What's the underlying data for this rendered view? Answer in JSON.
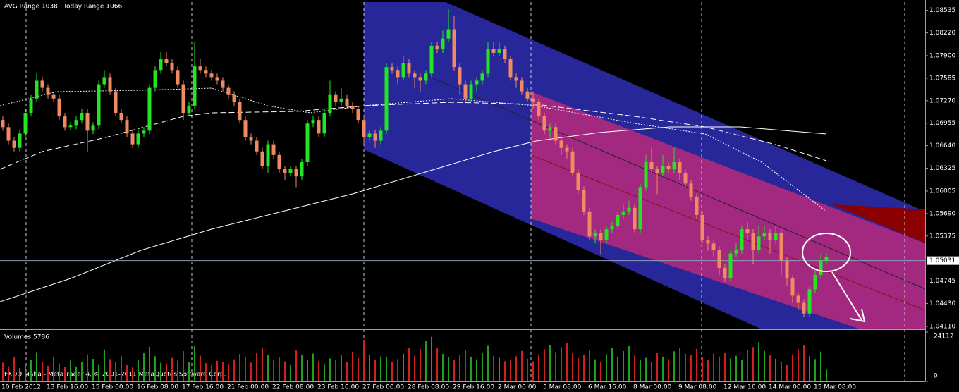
{
  "chart_data": {
    "type": "candlestick",
    "annotations": [
      "AVG Range 1038",
      "Today Range 1066"
    ],
    "footer": "FXDD Malta - MetaTrader 4, © 2001-2011 MetaQuotes Software Corp.",
    "categories": [
      "10 Feb 2012",
      null,
      null,
      null,
      null,
      null,
      null,
      null,
      "13 Feb 16:00",
      null,
      null,
      null,
      null,
      null,
      null,
      null,
      "15 Feb 00:00",
      null,
      null,
      null,
      null,
      null,
      null,
      null,
      "16 Feb 08:00",
      null,
      null,
      null,
      null,
      null,
      null,
      null,
      "17 Feb 16:00",
      null,
      null,
      null,
      null,
      null,
      null,
      null,
      "21 Feb 00:00",
      null,
      null,
      null,
      null,
      null,
      null,
      null,
      "22 Feb 08:00",
      null,
      null,
      null,
      null,
      null,
      null,
      null,
      "23 Feb 16:00",
      null,
      null,
      null,
      null,
      null,
      null,
      null,
      "27 Feb 00:00",
      null,
      null,
      null,
      null,
      null,
      null,
      null,
      "28 Feb 08:00",
      null,
      null,
      null,
      null,
      null,
      null,
      null,
      "29 Feb 16:00",
      null,
      null,
      null,
      null,
      null,
      null,
      null,
      "2 Mar 00:00",
      null,
      null,
      null,
      null,
      null,
      null,
      null,
      "5 Mar 08:00",
      null,
      null,
      null,
      null,
      null,
      null,
      null,
      "6 Mar 16:00",
      null,
      null,
      null,
      null,
      null,
      null,
      null,
      "8 Mar 00:00",
      null,
      null,
      null,
      null,
      null,
      null,
      null,
      "9 Mar 08:00",
      null,
      null,
      null,
      null,
      null,
      null,
      null,
      "12 Mar 16:00",
      null,
      null,
      null,
      null,
      null,
      null,
      null,
      "14 Mar 00:00",
      null,
      null,
      null,
      null,
      null,
      null,
      null,
      "15 Mar 08:00",
      null,
      null
    ],
    "open": [
      1.07,
      1.069,
      1.0671,
      1.0661,
      1.0681,
      1.071,
      1.073,
      1.0755,
      1.0745,
      1.0735,
      1.073,
      1.0705,
      1.069,
      1.0692,
      1.07,
      1.071,
      1.0685,
      1.0692,
      1.075,
      1.076,
      1.074,
      1.071,
      1.07,
      1.0681,
      1.0666,
      1.0681,
      1.0685,
      1.0745,
      1.077,
      1.0785,
      1.078,
      1.077,
      1.075,
      1.071,
      1.072,
      1.0775,
      1.077,
      1.0765,
      1.076,
      1.0755,
      1.0745,
      1.0735,
      1.0725,
      1.07,
      1.0676,
      1.0671,
      1.0656,
      1.0636,
      1.0666,
      1.0651,
      1.0631,
      1.0626,
      1.0631,
      1.0621,
      1.0641,
      1.0695,
      1.07,
      1.0681,
      1.071,
      1.0735,
      1.0725,
      1.073,
      1.072,
      1.0715,
      1.07,
      1.0676,
      1.0681,
      1.0671,
      1.0685,
      1.0774,
      1.077,
      1.076,
      1.078,
      1.0765,
      1.076,
      1.0755,
      1.0765,
      1.0804,
      1.0799,
      1.0814,
      1.0827,
      1.0774,
      1.075,
      1.073,
      1.075,
      1.0755,
      1.0765,
      1.0799,
      1.0794,
      1.0799,
      1.0785,
      1.076,
      1.0755,
      1.074,
      1.073,
      1.0725,
      1.0705,
      1.0685,
      1.069,
      1.0671,
      1.0661,
      1.0656,
      1.0626,
      1.0602,
      1.0572,
      1.0537,
      1.0542,
      1.0532,
      1.0547,
      1.0552,
      1.0567,
      1.0572,
      1.0577,
      1.0547,
      1.0606,
      1.0641,
      1.0631,
      1.0626,
      1.0636,
      1.0631,
      1.0641,
      1.0626,
      1.0611,
      1.0592,
      1.0567,
      1.0532,
      1.0527,
      1.0518,
      1.0493,
      1.0478,
      1.0513,
      1.0518,
      1.0547,
      1.0542,
      1.0518,
      1.0537,
      1.0542,
      1.0532,
      1.0542,
      1.0503,
      1.0478,
      1.0454,
      1.0444,
      1.0429,
      1.0463,
      1.0483,
      1.0503
    ],
    "high": [
      1.0705,
      1.0695,
      1.0676,
      1.0686,
      1.0715,
      1.0735,
      1.0765,
      1.076,
      1.075,
      1.074,
      1.0735,
      1.071,
      1.0697,
      1.0705,
      1.0715,
      1.0715,
      1.0697,
      1.0755,
      1.077,
      1.0765,
      1.0745,
      1.0715,
      1.0705,
      1.0686,
      1.0686,
      1.069,
      1.075,
      1.0775,
      1.0795,
      1.0795,
      1.0785,
      1.0775,
      1.0755,
      1.0725,
      1.081,
      1.0785,
      1.0775,
      1.077,
      1.0765,
      1.076,
      1.075,
      1.074,
      1.073,
      1.0705,
      1.0681,
      1.0676,
      1.0661,
      1.0671,
      1.0671,
      1.0656,
      1.0636,
      1.0636,
      1.0636,
      1.0646,
      1.07,
      1.0705,
      1.0705,
      1.0715,
      1.0755,
      1.074,
      1.0745,
      1.0735,
      1.0725,
      1.072,
      1.0705,
      1.0686,
      1.0686,
      1.069,
      1.0779,
      1.0779,
      1.0775,
      1.079,
      1.0785,
      1.077,
      1.0765,
      1.077,
      1.0809,
      1.0809,
      1.0825,
      1.0855,
      1.0845,
      1.0779,
      1.0755,
      1.0755,
      1.076,
      1.077,
      1.0809,
      1.0809,
      1.0809,
      1.0804,
      1.079,
      1.0765,
      1.076,
      1.0745,
      1.074,
      1.073,
      1.071,
      1.0695,
      1.0695,
      1.0676,
      1.0666,
      1.0661,
      1.0631,
      1.0607,
      1.0577,
      1.0547,
      1.0547,
      1.0552,
      1.0557,
      1.0572,
      1.0582,
      1.0587,
      1.0582,
      1.0611,
      1.0651,
      1.0661,
      1.0636,
      1.0651,
      1.0641,
      1.0661,
      1.0646,
      1.0631,
      1.0616,
      1.0597,
      1.0572,
      1.0537,
      1.0532,
      1.0523,
      1.0498,
      1.0518,
      1.0528,
      1.0552,
      1.0557,
      1.0547,
      1.0552,
      1.0552,
      1.0547,
      1.0552,
      1.0547,
      1.0508,
      1.0483,
      1.0459,
      1.0449,
      1.0468,
      1.0488,
      1.0513,
      1.0513
    ],
    "low": [
      1.0685,
      1.0666,
      1.0656,
      1.0656,
      1.0676,
      1.0705,
      1.0725,
      1.074,
      1.073,
      1.0725,
      1.07,
      1.0685,
      1.0685,
      1.0687,
      1.0695,
      1.0655,
      1.068,
      1.0687,
      1.0745,
      1.0735,
      1.0705,
      1.0695,
      1.0676,
      1.0661,
      1.0661,
      1.0676,
      1.068,
      1.074,
      1.0765,
      1.0775,
      1.0765,
      1.0745,
      1.07,
      1.0705,
      1.0715,
      1.0765,
      1.076,
      1.0755,
      1.075,
      1.074,
      1.073,
      1.072,
      1.0695,
      1.0671,
      1.0666,
      1.0651,
      1.0631,
      1.0626,
      1.0646,
      1.0626,
      1.0616,
      1.0621,
      1.0606,
      1.0616,
      1.0636,
      1.069,
      1.0676,
      1.0676,
      1.0705,
      1.072,
      1.072,
      1.0715,
      1.071,
      1.0695,
      1.0666,
      1.0671,
      1.0661,
      1.0666,
      1.068,
      1.0765,
      1.075,
      1.0755,
      1.076,
      1.0745,
      1.074,
      1.075,
      1.076,
      1.0794,
      1.0794,
      1.0809,
      1.0769,
      1.0735,
      1.0725,
      1.0725,
      1.074,
      1.075,
      1.076,
      1.0789,
      1.0789,
      1.078,
      1.0755,
      1.0745,
      1.0735,
      1.0725,
      1.0715,
      1.07,
      1.068,
      1.0675,
      1.0666,
      1.0651,
      1.0646,
      1.0621,
      1.0597,
      1.0567,
      1.0532,
      1.0527,
      1.0512,
      1.0527,
      1.0542,
      1.0547,
      1.0562,
      1.0567,
      1.0542,
      1.0542,
      1.0601,
      1.0626,
      1.0596,
      1.0621,
      1.0626,
      1.0626,
      1.0616,
      1.0606,
      1.0587,
      1.0562,
      1.0527,
      1.0517,
      1.0508,
      1.0483,
      1.0473,
      1.0473,
      1.0508,
      1.0513,
      1.0532,
      1.0498,
      1.0513,
      1.0532,
      1.0513,
      1.0527,
      1.0483,
      1.0468,
      1.0444,
      1.0434,
      1.0424,
      1.0424,
      1.0458,
      1.0478,
      1.0498
    ],
    "close": [
      1.069,
      1.0671,
      1.0661,
      1.0681,
      1.071,
      1.073,
      1.0755,
      1.0745,
      1.0735,
      1.073,
      1.0705,
      1.069,
      1.0692,
      1.07,
      1.071,
      1.0685,
      1.0692,
      1.075,
      1.076,
      1.074,
      1.071,
      1.07,
      1.0681,
      1.0666,
      1.0681,
      1.0685,
      1.0745,
      1.077,
      1.0785,
      1.078,
      1.077,
      1.075,
      1.071,
      1.072,
      1.0775,
      1.077,
      1.0765,
      1.076,
      1.0755,
      1.0745,
      1.0735,
      1.0725,
      1.07,
      1.0676,
      1.0671,
      1.0656,
      1.0636,
      1.0666,
      1.0651,
      1.0631,
      1.0626,
      1.0631,
      1.0621,
      1.0641,
      1.0695,
      1.07,
      1.0681,
      1.071,
      1.0735,
      1.0725,
      1.073,
      1.072,
      1.0715,
      1.07,
      1.0676,
      1.0681,
      1.0671,
      1.0685,
      1.0774,
      1.077,
      1.076,
      1.078,
      1.0765,
      1.076,
      1.0755,
      1.0765,
      1.0804,
      1.0799,
      1.0814,
      1.0827,
      1.0774,
      1.075,
      1.073,
      1.075,
      1.0755,
      1.0765,
      1.0799,
      1.0794,
      1.0799,
      1.0785,
      1.076,
      1.0755,
      1.074,
      1.073,
      1.0725,
      1.0705,
      1.0685,
      1.069,
      1.0671,
      1.0661,
      1.0656,
      1.0626,
      1.0602,
      1.0572,
      1.0537,
      1.0542,
      1.0532,
      1.0547,
      1.0552,
      1.0567,
      1.0572,
      1.0577,
      1.0547,
      1.0606,
      1.0641,
      1.0631,
      1.0626,
      1.0636,
      1.0631,
      1.0641,
      1.0626,
      1.0611,
      1.0592,
      1.0567,
      1.0532,
      1.0527,
      1.0518,
      1.0493,
      1.0478,
      1.0513,
      1.0518,
      1.0547,
      1.0542,
      1.0518,
      1.0537,
      1.0542,
      1.0532,
      1.0542,
      1.0503,
      1.0478,
      1.0454,
      1.0444,
      1.0429,
      1.0463,
      1.0483,
      1.0503,
      1.0508
    ],
    "up_color": "#22e622",
    "down_color": "#f08a62",
    "ylim": [
      1.0407,
      1.0866
    ],
    "yticks": [
      1.08535,
      {
        "value": 1.0822,
        "label": "1.08220"
      },
      {
        "value": 1.079,
        "label": "1.07900"
      },
      1.07585,
      {
        "value": 1.0727,
        "label": "1.07270"
      },
      1.06955,
      {
        "value": 1.0664,
        "label": "1.06640"
      },
      1.06325,
      1.06005,
      {
        "value": 1.0569,
        "label": "1.05690"
      },
      1.05375,
      1.04745,
      {
        "value": 1.0443,
        "label": "1.04430"
      },
      {
        "value": 1.0411,
        "label": "1.04110"
      }
    ],
    "price_line": 1.05031,
    "volume": {
      "title": "Volumes 5786",
      "values": [
        9200,
        7400,
        11800,
        6500,
        8200,
        10400,
        14300,
        9800,
        7600,
        12100,
        8800,
        6900,
        10200,
        7300,
        9500,
        13200,
        11000,
        8400,
        15600,
        10900,
        9700,
        12400,
        8100,
        7200,
        10600,
        13800,
        16900,
        12300,
        9100,
        8700,
        11500,
        10200,
        14800,
        9400,
        17300,
        12600,
        8900,
        7800,
        10100,
        9300,
        8600,
        10800,
        13400,
        11900,
        9200,
        14100,
        16200,
        12800,
        10500,
        11700,
        9800,
        8300,
        15400,
        12900,
        10700,
        13600,
        9900,
        8500,
        11200,
        10400,
        12700,
        9600,
        14500,
        11300,
        20300,
        13100,
        10600,
        12200,
        11800,
        9400,
        10900,
        13500,
        16400,
        12600,
        15800,
        19700,
        21800,
        16100,
        13400,
        11900,
        10300,
        12800,
        15300,
        12100,
        10800,
        13900,
        17400,
        12500,
        11600,
        9900,
        10700,
        12300,
        14900,
        11100,
        9800,
        13200,
        15600,
        17900,
        14300,
        16800,
        18600,
        13700,
        11400,
        12900,
        15200,
        10800,
        9700,
        13300,
        16400,
        11900,
        14800,
        17200,
        12600,
        10300,
        11500,
        9600,
        13800,
        12100,
        10900,
        14700,
        16300,
        13500,
        12800,
        15900,
        11700,
        10400,
        13600,
        12200,
        14100,
        11300,
        12500,
        10600,
        15400,
        16800,
        19200,
        14900,
        12700,
        11100,
        9800,
        8200,
        13200,
        15700,
        17600,
        12300,
        10900,
        14600,
        5786
      ],
      "ylim": [
        0,
        24112
      ],
      "yticks": [
        24112,
        0
      ],
      "up_color": "#1fa01f",
      "down_color": "#d02020"
    }
  }
}
